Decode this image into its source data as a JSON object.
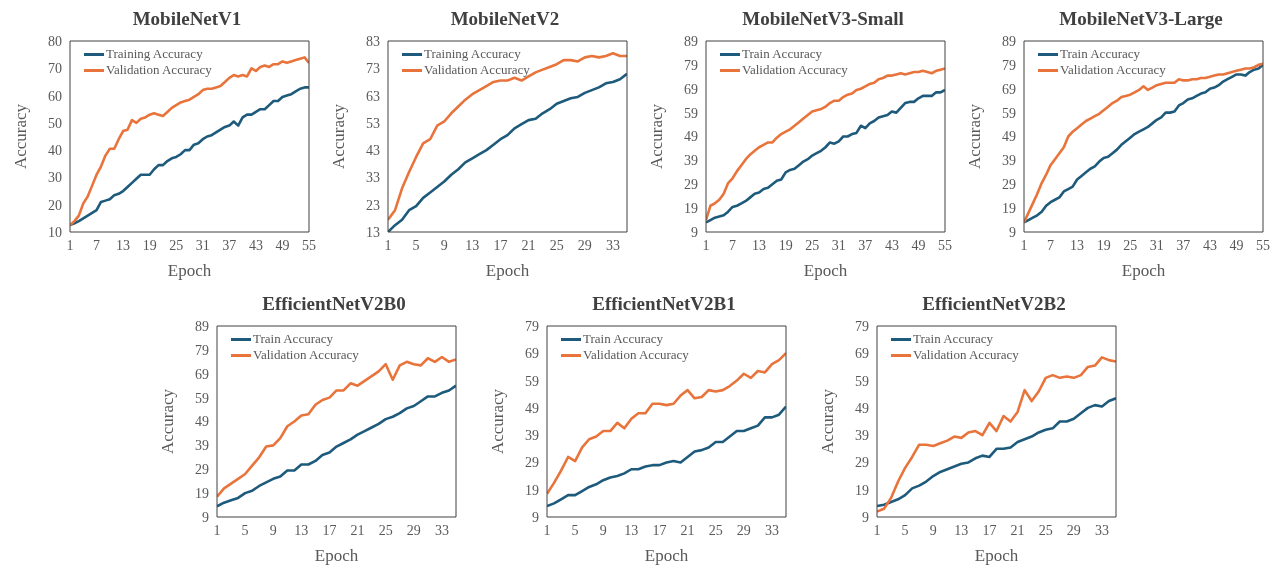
{
  "chart_data": [
    {
      "type": "line",
      "title": "MobileNetV1",
      "xlabel": "Epoch",
      "ylabel": "Accuracy",
      "x": [
        1,
        2,
        3,
        4,
        5,
        6,
        7,
        8,
        9,
        10,
        11,
        12,
        13,
        14,
        15,
        16,
        17,
        18,
        19,
        20,
        21,
        22,
        23,
        24,
        25,
        26,
        27,
        28,
        29,
        30,
        31,
        32,
        33,
        34,
        35,
        36,
        37,
        38,
        39,
        40,
        41,
        42,
        43,
        44,
        45,
        46,
        47,
        48,
        49,
        50,
        51,
        52,
        53,
        54,
        55
      ],
      "xlim": [
        1,
        55
      ],
      "xticks": [
        1,
        7,
        13,
        19,
        25,
        31,
        37,
        43,
        49,
        55
      ],
      "ylim": [
        10,
        80
      ],
      "yticks": [
        10,
        20,
        30,
        40,
        50,
        60,
        70,
        80
      ],
      "grid": false,
      "legend": "top left",
      "marker": "none",
      "line_style": "solid",
      "series": [
        {
          "name": "Training Accuracy",
          "color": "#1d5a7b",
          "values": [
            12.5,
            13.2,
            14,
            15,
            16,
            17,
            18,
            21,
            21.5,
            22,
            23.5,
            24,
            25,
            26.5,
            28,
            29.5,
            31,
            31,
            31,
            33,
            34.5,
            34.5,
            36,
            37,
            37.5,
            38.5,
            40,
            40,
            42,
            42.5,
            44,
            45,
            45.5,
            46.5,
            47.5,
            48.5,
            49,
            50.5,
            49,
            52,
            53,
            53,
            54,
            55,
            55,
            56.5,
            58,
            58,
            59.5,
            60,
            60.5,
            61.5,
            62.5,
            63,
            63
          ]
        },
        {
          "name": "Validation Accuracy",
          "color": "#e8743b",
          "values": [
            12.5,
            14,
            16,
            20.5,
            23,
            27,
            31,
            34,
            38,
            40.5,
            40.5,
            44,
            47,
            47.5,
            51,
            50,
            51.5,
            52,
            53,
            53.5,
            53,
            52.5,
            54,
            55.5,
            56.5,
            57.5,
            58,
            58.5,
            59.5,
            60.5,
            62,
            62.5,
            62.5,
            63,
            63.5,
            65,
            66.5,
            67.5,
            67,
            67.5,
            67,
            70,
            69,
            70.5,
            71,
            70.5,
            71.5,
            71.5,
            72.5,
            72,
            72.5,
            73,
            73.5,
            74,
            72
          ]
        }
      ]
    },
    {
      "type": "line",
      "title": "MobileNetV2",
      "xlabel": "Epoch",
      "ylabel": "Accuracy",
      "x": [
        1,
        2,
        3,
        4,
        5,
        6,
        7,
        8,
        9,
        10,
        11,
        12,
        13,
        14,
        15,
        16,
        17,
        18,
        19,
        20,
        21,
        22,
        23,
        24,
        25,
        26,
        27,
        28,
        29,
        30,
        31,
        32,
        33,
        34,
        35
      ],
      "xlim": [
        1,
        35
      ],
      "xticks": [
        1,
        5,
        9,
        13,
        17,
        21,
        25,
        29,
        33
      ],
      "ylim": [
        13,
        83
      ],
      "yticks": [
        13,
        23,
        33,
        43,
        53,
        63,
        73,
        83
      ],
      "grid": false,
      "legend": "top left",
      "marker": "none",
      "line_style": "solid",
      "series": [
        {
          "name": "Training Accuracy",
          "color": "#1d5a7b",
          "values": [
            13,
            15.5,
            17.5,
            21,
            22.5,
            25.5,
            27.5,
            29.5,
            31.5,
            34,
            36,
            38.5,
            40,
            41.5,
            43,
            45,
            47,
            48.5,
            51,
            52.5,
            54,
            54.5,
            56.5,
            58,
            60,
            61,
            62,
            62.5,
            64,
            65,
            66,
            67.5,
            68,
            69,
            71
          ]
        },
        {
          "name": "Validation Accuracy",
          "color": "#e8743b",
          "values": [
            17.5,
            21,
            29,
            35,
            40.5,
            45.5,
            47,
            52,
            53.5,
            56.5,
            59,
            61.5,
            63.5,
            65,
            66.5,
            68,
            68.5,
            68.5,
            69.5,
            68.5,
            70,
            71.5,
            72.5,
            73.5,
            74.5,
            76,
            76,
            75.5,
            77,
            77.5,
            77,
            77.5,
            78.5,
            77.5,
            77.5
          ]
        }
      ]
    },
    {
      "type": "line",
      "title": "MobileNetV3-Small",
      "xlabel": "Epoch",
      "ylabel": "Accuracy",
      "x": [
        1,
        2,
        3,
        4,
        5,
        6,
        7,
        8,
        9,
        10,
        11,
        12,
        13,
        14,
        15,
        16,
        17,
        18,
        19,
        20,
        21,
        22,
        23,
        24,
        25,
        26,
        27,
        28,
        29,
        30,
        31,
        32,
        33,
        34,
        35,
        36,
        37,
        38,
        39,
        40,
        41,
        42,
        43,
        44,
        45,
        46,
        47,
        48,
        49,
        50,
        51,
        52,
        53,
        54,
        55
      ],
      "xlim": [
        1,
        55
      ],
      "xticks": [
        1,
        7,
        13,
        19,
        25,
        31,
        37,
        43,
        49,
        55
      ],
      "ylim": [
        9,
        89
      ],
      "yticks": [
        9,
        19,
        29,
        39,
        49,
        59,
        69,
        79,
        89
      ],
      "grid": false,
      "legend": "top left",
      "marker": "none",
      "line_style": "solid",
      "series": [
        {
          "name": "Train Accuracy",
          "color": "#1d5a7b",
          "values": [
            13,
            14,
            15,
            15.5,
            16,
            17.5,
            19.5,
            20,
            21,
            22,
            23.5,
            25,
            25.5,
            27,
            27.5,
            29,
            30.5,
            31,
            34,
            35,
            35.5,
            37,
            38.5,
            39.5,
            41,
            42,
            43,
            44.5,
            46.5,
            46,
            47,
            49,
            49,
            50,
            50.5,
            53.5,
            52.5,
            54.5,
            55.5,
            57,
            57.5,
            58,
            59.5,
            59,
            61,
            63,
            63.5,
            63.5,
            65,
            66,
            66,
            66,
            67.5,
            67.5,
            68.5
          ]
        },
        {
          "name": "Validation Accuracy",
          "color": "#e8743b",
          "values": [
            14,
            20,
            21,
            22.5,
            25,
            29.5,
            31.5,
            34.5,
            37,
            39.5,
            41.5,
            43,
            44.5,
            45.5,
            46.5,
            46.5,
            48.5,
            50,
            51,
            52,
            53.5,
            55,
            56.5,
            58,
            59.5,
            60,
            60.5,
            61.5,
            63,
            64,
            64,
            65.5,
            66.5,
            67,
            68.5,
            69,
            70,
            71,
            71.5,
            73,
            73.5,
            74.5,
            74.5,
            75,
            75.5,
            75,
            75.5,
            76,
            76,
            76.5,
            76,
            75.5,
            76.5,
            77,
            77.5
          ]
        }
      ]
    },
    {
      "type": "line",
      "title": "MobileNetV3-Large",
      "xlabel": "Epoch",
      "ylabel": "Accuracy",
      "x": [
        1,
        2,
        3,
        4,
        5,
        6,
        7,
        8,
        9,
        10,
        11,
        12,
        13,
        14,
        15,
        16,
        17,
        18,
        19,
        20,
        21,
        22,
        23,
        24,
        25,
        26,
        27,
        28,
        29,
        30,
        31,
        32,
        33,
        34,
        35,
        36,
        37,
        38,
        39,
        40,
        41,
        42,
        43,
        44,
        45,
        46,
        47,
        48,
        49,
        50,
        51,
        52,
        53,
        54,
        55
      ],
      "xlim": [
        1,
        55
      ],
      "xticks": [
        1,
        7,
        13,
        19,
        25,
        31,
        37,
        43,
        49,
        55
      ],
      "ylim": [
        9,
        89
      ],
      "yticks": [
        9,
        19,
        29,
        39,
        49,
        59,
        69,
        79,
        89
      ],
      "grid": false,
      "legend": "top left",
      "marker": "none",
      "line_style": "solid",
      "series": [
        {
          "name": "Train Accuracy",
          "color": "#1d5a7b",
          "values": [
            13,
            14,
            15,
            16,
            17.5,
            20,
            21.5,
            22.5,
            23.5,
            26,
            27,
            28,
            31,
            32.5,
            34,
            35.5,
            36.5,
            38.5,
            40,
            40.5,
            42,
            43.5,
            45.5,
            47,
            48.5,
            50,
            51,
            52,
            53,
            54.5,
            56,
            57,
            59,
            59,
            59.5,
            62,
            63,
            64.5,
            65,
            66,
            67,
            67.5,
            69,
            69.5,
            70.5,
            72,
            73,
            74,
            75,
            75,
            74.5,
            76,
            77,
            77.5,
            79
          ]
        },
        {
          "name": "Validation Accuracy",
          "color": "#e8743b",
          "values": [
            13,
            17,
            21,
            25,
            29.5,
            33,
            37,
            39.5,
            42,
            44.5,
            49,
            51,
            52.5,
            54,
            55.5,
            56.5,
            57.5,
            58.5,
            60,
            61.5,
            63,
            64,
            65.5,
            66,
            66.5,
            67.5,
            68.5,
            70,
            68.5,
            69.5,
            70.5,
            71,
            71.5,
            71.5,
            71.5,
            73,
            72.5,
            72.5,
            73,
            73,
            73.5,
            73.5,
            74,
            74.5,
            75,
            75,
            75.5,
            76,
            76.5,
            77,
            77.5,
            77.5,
            78,
            79,
            79.5
          ]
        }
      ]
    },
    {
      "type": "line",
      "title": "EfficientNetV2B0",
      "xlabel": "Epoch",
      "ylabel": "Accuracy",
      "x": [
        1,
        2,
        3,
        4,
        5,
        6,
        7,
        8,
        9,
        10,
        11,
        12,
        13,
        14,
        15,
        16,
        17,
        18,
        19,
        20,
        21,
        22,
        23,
        24,
        25,
        26,
        27,
        28,
        29,
        30,
        31,
        32,
        33,
        34,
        35
      ],
      "xlim": [
        1,
        35
      ],
      "xticks": [
        1,
        5,
        9,
        13,
        17,
        21,
        25,
        29,
        33
      ],
      "ylim": [
        9,
        89
      ],
      "yticks": [
        9,
        19,
        29,
        39,
        49,
        59,
        69,
        79,
        89
      ],
      "grid": false,
      "legend": "top left",
      "marker": "none",
      "line_style": "solid",
      "series": [
        {
          "name": "Train Accuracy",
          "color": "#1d5a7b",
          "values": [
            13.5,
            15,
            16,
            17,
            19,
            20,
            22,
            23.5,
            25,
            26,
            28.5,
            28.5,
            31,
            31,
            32.5,
            35,
            36,
            38.5,
            40,
            41.5,
            43.5,
            45,
            46.5,
            48,
            50,
            51,
            52.5,
            54.5,
            55.5,
            57.5,
            59.5,
            59.5,
            61,
            62,
            64
          ]
        },
        {
          "name": "Validation Accuracy",
          "color": "#e8743b",
          "values": [
            17.5,
            21,
            23,
            25,
            27,
            30.5,
            34,
            38.5,
            39,
            42,
            47,
            49,
            51.5,
            52,
            56,
            58,
            59,
            62,
            62,
            65,
            64,
            66,
            68,
            70,
            73,
            66.5,
            72.5,
            74,
            73,
            72.5,
            75.5,
            74,
            76,
            74,
            75
          ]
        }
      ]
    },
    {
      "type": "line",
      "title": "EfficientNetV2B1",
      "xlabel": "Epoch",
      "ylabel": "Accuracy",
      "x": [
        1,
        2,
        3,
        4,
        5,
        6,
        7,
        8,
        9,
        10,
        11,
        12,
        13,
        14,
        15,
        16,
        17,
        18,
        19,
        20,
        21,
        22,
        23,
        24,
        25,
        26,
        27,
        28,
        29,
        30,
        31,
        32,
        33,
        34,
        35
      ],
      "xlim": [
        1,
        35
      ],
      "xticks": [
        1,
        5,
        9,
        13,
        17,
        21,
        25,
        29,
        33
      ],
      "ylim": [
        9,
        79
      ],
      "yticks": [
        9,
        19,
        29,
        39,
        49,
        59,
        69,
        79
      ],
      "grid": false,
      "legend": "top left",
      "marker": "none",
      "line_style": "solid",
      "series": [
        {
          "name": "Train Accuracy",
          "color": "#1d5a7b",
          "values": [
            13,
            14,
            15.5,
            17,
            17,
            18.5,
            20,
            21,
            22.5,
            23.5,
            24,
            25,
            26.5,
            26.5,
            27.5,
            28,
            28,
            29,
            29.5,
            29,
            31,
            33,
            33.5,
            34.5,
            36.5,
            36.5,
            38.5,
            40.5,
            40.5,
            41.5,
            42.5,
            45.5,
            45.5,
            46.5,
            49.5
          ]
        },
        {
          "name": "Validation Accuracy",
          "color": "#e8743b",
          "values": [
            17.5,
            21.5,
            26,
            31,
            29.5,
            34.5,
            37.5,
            38.5,
            40.5,
            40.5,
            43.5,
            41.5,
            45,
            47,
            47,
            50.5,
            50.5,
            50,
            50.5,
            53.5,
            55.5,
            52.5,
            53,
            55.5,
            55,
            55.5,
            57,
            59,
            61.5,
            60,
            62.5,
            62,
            65,
            66.5,
            69
          ]
        }
      ]
    },
    {
      "type": "line",
      "title": "EfficientNetV2B2",
      "xlabel": "Epoch",
      "ylabel": "Accuracy",
      "x": [
        1,
        2,
        3,
        4,
        5,
        6,
        7,
        8,
        9,
        10,
        11,
        12,
        13,
        14,
        15,
        16,
        17,
        18,
        19,
        20,
        21,
        22,
        23,
        24,
        25,
        26,
        27,
        28,
        29,
        30,
        31,
        32,
        33,
        34,
        35
      ],
      "xlim": [
        1,
        35
      ],
      "xticks": [
        1,
        5,
        9,
        13,
        17,
        21,
        25,
        29,
        33
      ],
      "ylim": [
        9,
        79
      ],
      "yticks": [
        9,
        19,
        29,
        39,
        49,
        59,
        69,
        79
      ],
      "grid": false,
      "legend": "top left",
      "marker": "none",
      "line_style": "solid",
      "series": [
        {
          "name": "Train Accuracy",
          "color": "#1d5a7b",
          "values": [
            13,
            13.5,
            14.5,
            15.5,
            17,
            19.5,
            20.5,
            22,
            24,
            25.5,
            26.5,
            27.5,
            28.5,
            29,
            30.5,
            31.5,
            31,
            34,
            34,
            34.5,
            36.5,
            37.5,
            38.5,
            40,
            41,
            41.5,
            44,
            44,
            45,
            47,
            49,
            50,
            49.5,
            51.5,
            52.5
          ]
        },
        {
          "name": "Validation Accuracy",
          "color": "#e8743b",
          "values": [
            11,
            12,
            16,
            22,
            27,
            31,
            35.5,
            35.5,
            35,
            36,
            37,
            38.5,
            38,
            40,
            40.5,
            39,
            43.5,
            40.5,
            46,
            44,
            47.5,
            55.5,
            51.5,
            55,
            60,
            61,
            60,
            60.5,
            60,
            61,
            64,
            64.5,
            67.5,
            66.5,
            66
          ]
        }
      ]
    }
  ]
}
